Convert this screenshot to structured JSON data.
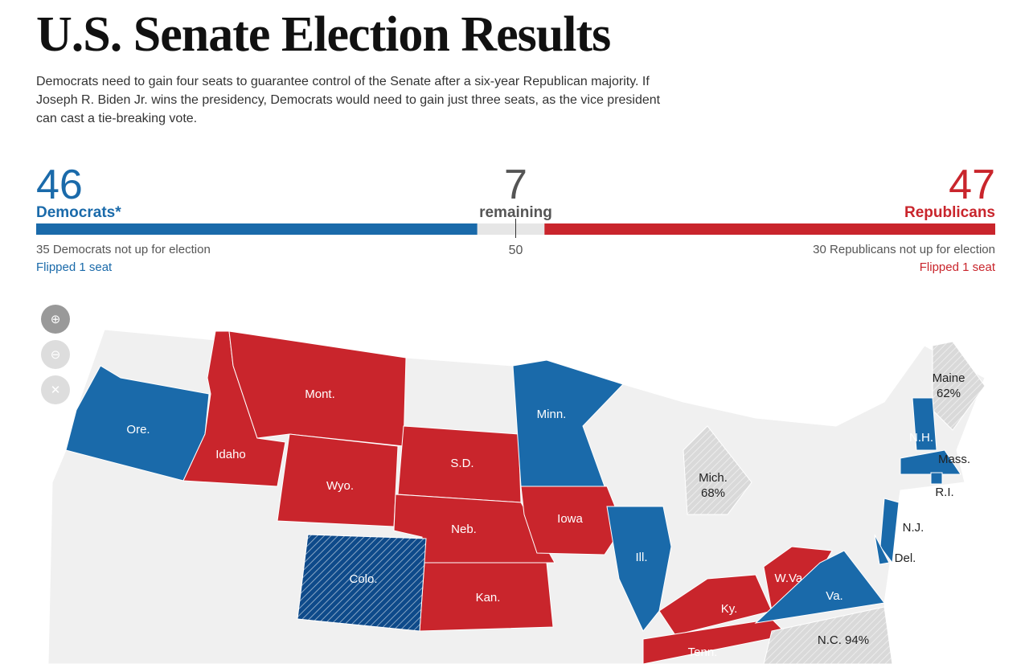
{
  "header": {
    "title": "U.S. Senate Election Results",
    "summary": "Democrats need to gain four seats to guarantee control of the Senate after a six-year Republican majority. If Joseph R. Biden Jr. wins the presidency, Democrats would need to gain just three seats, as the vice president can cast a tie-breaking vote."
  },
  "seats": {
    "democrats": {
      "count": 46,
      "label": "Democrats*",
      "note": "35 Democrats not up for election",
      "flipped": "Flipped 1 seat",
      "color": "#1a6aaa"
    },
    "remaining": {
      "count": 7,
      "label": "remaining",
      "color": "#e6e6e6"
    },
    "republicans": {
      "count": 47,
      "label": "Republicans",
      "note": "30 Republicans not up for election",
      "flipped": "Flipped 1 seat",
      "color": "#c9252c"
    },
    "majority": 50
  },
  "map": {
    "states": [
      {
        "label": "Ore.",
        "color": "#1a6aaa"
      },
      {
        "label": "Idaho",
        "color": "#c9252c"
      },
      {
        "label": "Mont.",
        "color": "#c9252c"
      },
      {
        "label": "Wyo.",
        "color": "#c9252c"
      },
      {
        "label": "S.D.",
        "color": "#c9252c"
      },
      {
        "label": "Neb.",
        "color": "#c9252c"
      },
      {
        "label": "Kan.",
        "color": "#c9252c"
      },
      {
        "label": "Colo.",
        "color": "#0e4a8a",
        "hatched": true
      },
      {
        "label": "Minn.",
        "color": "#1a6aaa"
      },
      {
        "label": "Iowa",
        "color": "#c9252c"
      },
      {
        "label": "Ill.",
        "color": "#1a6aaa"
      },
      {
        "label": "Mich.",
        "detail": "68%",
        "color": "#d9d9d9",
        "hatched": true
      },
      {
        "label": "Ky.",
        "color": "#c9252c"
      },
      {
        "label": "Tenn.",
        "color": "#c9252c"
      },
      {
        "label": "W.Va.",
        "color": "#c9252c"
      },
      {
        "label": "Va.",
        "color": "#1a6aaa"
      },
      {
        "label": "N.C. 94%",
        "color": "#d9d9d9",
        "hatched": true
      },
      {
        "label": "Maine",
        "detail": "62%",
        "color": "#d9d9d9",
        "hatched": true
      },
      {
        "label": "N.H.",
        "color": "#1a6aaa"
      },
      {
        "label": "Mass.",
        "color": "#1a6aaa"
      },
      {
        "label": "R.I.",
        "color": "#1a6aaa"
      },
      {
        "label": "N.J.",
        "color": "#1a6aaa"
      },
      {
        "label": "Del.",
        "color": "#1a6aaa"
      }
    ]
  }
}
